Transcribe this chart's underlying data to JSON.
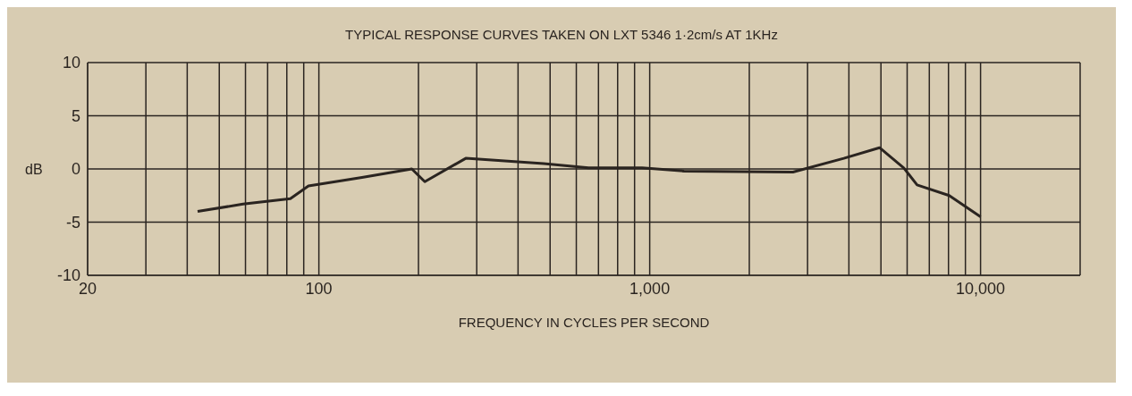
{
  "chart_data": {
    "type": "line",
    "title": "TYPICAL RESPONSE CURVES TAKEN ON LXT 5346 1·2cm/s AT 1KHz",
    "xlabel": "FREQUENCY IN CYCLES PER SECOND",
    "ylabel": "dB",
    "log": "x",
    "grid": true,
    "legend": false,
    "marker": "none",
    "line_style": "solid",
    "xlim": [
      20,
      20000
    ],
    "xticks": [
      20,
      {
        "value": 30,
        "label": null
      },
      {
        "value": 40,
        "label": null
      },
      {
        "value": 50,
        "label": null
      },
      {
        "value": 60,
        "label": null
      },
      {
        "value": 70,
        "label": null
      },
      {
        "value": 80,
        "label": null
      },
      {
        "value": 90,
        "label": null
      },
      100,
      {
        "value": 200,
        "label": null
      },
      {
        "value": 300,
        "label": null
      },
      {
        "value": 400,
        "label": null
      },
      {
        "value": 500,
        "label": null
      },
      {
        "value": 600,
        "label": null
      },
      {
        "value": 700,
        "label": null
      },
      {
        "value": 800,
        "label": null
      },
      {
        "value": 900,
        "label": null
      },
      {
        "value": 1000,
        "label": "1,000"
      },
      {
        "value": 2000,
        "label": null
      },
      {
        "value": 3000,
        "label": null
      },
      {
        "value": 4000,
        "label": null
      },
      {
        "value": 5000,
        "label": null
      },
      {
        "value": 6000,
        "label": null
      },
      {
        "value": 7000,
        "label": null
      },
      {
        "value": 8000,
        "label": null
      },
      {
        "value": 9000,
        "label": null
      },
      {
        "value": 10000,
        "label": "10,000"
      },
      {
        "value": 20000,
        "label": null
      }
    ],
    "ylim": [
      -10,
      10
    ],
    "yticks": [
      -10,
      -5,
      0,
      5,
      10
    ],
    "series": [
      {
        "color": "#2a2420",
        "x": [
          43,
          59,
          82,
          93,
          135,
          191,
          209,
          278,
          478,
          653,
          948,
          1270,
          2710,
          3860,
          4950,
          5860,
          6430,
          8040,
          10000
        ],
        "values": [
          -4,
          -3.3,
          -2.8,
          -1.6,
          -0.8,
          0,
          -1.2,
          1,
          0.5,
          0.1,
          0.1,
          -0.2,
          -0.3,
          1,
          2,
          0.1,
          -1.5,
          -2.5,
          -4.5
        ]
      }
    ]
  }
}
